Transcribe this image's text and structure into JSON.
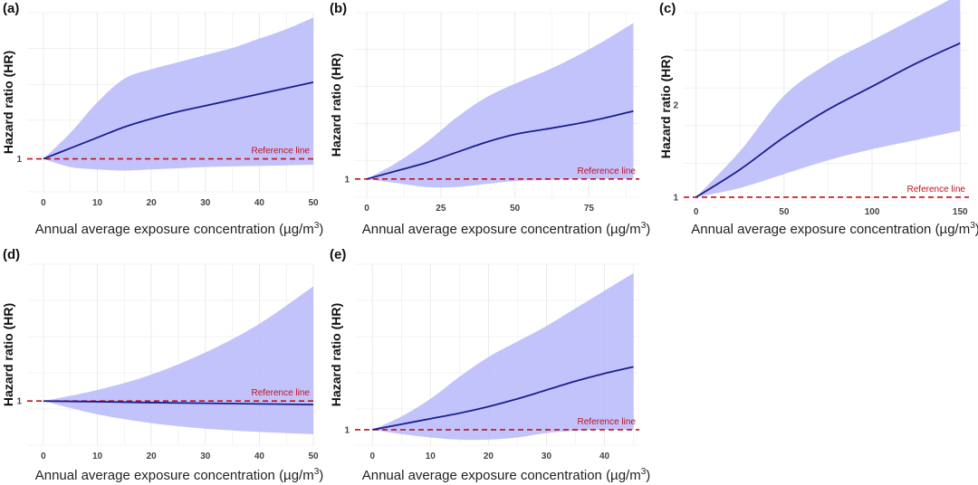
{
  "colors": {
    "band": "#b9b8fb",
    "line": "#1a1f8f",
    "reference": "#c0121e",
    "grid": "#e8e8e8"
  },
  "chart_data": [
    {
      "panel": "(a)",
      "type": "line",
      "ylabel": "Hazard ratio (HR)",
      "xlabel": "Annual average exposure concentration (µg/m³)",
      "xlim": [
        -3,
        50
      ],
      "ylim": [
        0.86,
        1.62
      ],
      "xticks": [
        0,
        10,
        20,
        30,
        40,
        50
      ],
      "yticks": [
        1
      ],
      "reference": {
        "y": 1,
        "label": "Reference line"
      },
      "series": [
        {
          "x": [
            0,
            5,
            10,
            15,
            20,
            25,
            30,
            35,
            40,
            45,
            50
          ],
          "y": [
            1.0,
            1.045,
            1.09,
            1.135,
            1.17,
            1.2,
            1.225,
            1.25,
            1.275,
            1.3,
            1.325
          ]
        },
        {
          "x": [
            0,
            5,
            10,
            15,
            20,
            25,
            30,
            35,
            40,
            45,
            50
          ],
          "y": [
            1.0,
            1.11,
            1.24,
            1.34,
            1.38,
            1.41,
            1.44,
            1.47,
            1.51,
            1.55,
            1.6
          ]
        },
        {
          "x": [
            0,
            5,
            10,
            15,
            20,
            25,
            30,
            35,
            40,
            45,
            50
          ],
          "y": [
            1.0,
            0.965,
            0.955,
            0.95,
            0.955,
            0.96,
            0.965,
            0.968,
            0.97,
            0.972,
            0.975
          ]
        }
      ]
    },
    {
      "panel": "(b)",
      "type": "line",
      "ylabel": "Hazard ratio (HR)",
      "xlabel": "Annual average exposure concentration (µg/m³)",
      "xlim": [
        -4,
        92
      ],
      "ylim": [
        0.91,
        1.82
      ],
      "xticks": [
        0,
        25,
        50,
        75
      ],
      "yticks": [
        1
      ],
      "reference": {
        "y": 1,
        "label": "Reference line"
      },
      "series": [
        {
          "x": [
            0,
            10,
            20,
            30,
            40,
            50,
            60,
            70,
            80,
            90
          ],
          "y": [
            1.0,
            1.04,
            1.08,
            1.13,
            1.18,
            1.22,
            1.245,
            1.27,
            1.3,
            1.335
          ]
        },
        {
          "x": [
            0,
            10,
            20,
            30,
            40,
            50,
            60,
            70,
            80,
            90
          ],
          "y": [
            1.0,
            1.08,
            1.18,
            1.3,
            1.4,
            1.47,
            1.53,
            1.6,
            1.68,
            1.77
          ]
        },
        {
          "x": [
            0,
            10,
            20,
            30,
            40,
            50,
            60,
            70,
            80,
            90
          ],
          "y": [
            1.0,
            0.98,
            0.96,
            0.96,
            0.975,
            0.99,
            0.995,
            0.998,
            1.0,
            1.0
          ]
        }
      ]
    },
    {
      "panel": "(c)",
      "type": "line",
      "ylabel": "Hazard ratio (HR)",
      "xlabel": "Annual average exposure concentration (µg/m³)",
      "xlim": [
        -7,
        155
      ],
      "ylim": [
        0.96,
        3.0
      ],
      "xticks": [
        0,
        50,
        100,
        150
      ],
      "yticks": [
        1,
        2
      ],
      "reference": {
        "y": 1,
        "label": "Reference line"
      },
      "series": [
        {
          "x": [
            0,
            25,
            50,
            75,
            100,
            125,
            150
          ],
          "y": [
            1.0,
            1.3,
            1.65,
            1.95,
            2.2,
            2.45,
            2.67
          ]
        },
        {
          "x": [
            0,
            25,
            50,
            75,
            100,
            125,
            150
          ],
          "y": [
            1.0,
            1.5,
            2.1,
            2.45,
            2.7,
            2.95,
            3.2
          ]
        },
        {
          "x": [
            0,
            25,
            50,
            75,
            100,
            125,
            150
          ],
          "y": [
            1.0,
            1.1,
            1.25,
            1.4,
            1.52,
            1.62,
            1.72
          ]
        }
      ]
    },
    {
      "panel": "(d)",
      "type": "line",
      "ylabel": "Hazard ratio (HR)",
      "xlabel": "Annual average exposure concentration (µg/m³)",
      "xlim": [
        -3,
        50
      ],
      "ylim": [
        0.8,
        1.62
      ],
      "xticks": [
        0,
        10,
        20,
        30,
        40,
        50
      ],
      "yticks": [
        1
      ],
      "reference": {
        "y": 1,
        "label": "Reference line"
      },
      "series": [
        {
          "x": [
            0,
            10,
            20,
            30,
            40,
            50
          ],
          "y": [
            1.0,
            0.997,
            0.993,
            0.99,
            0.987,
            0.984
          ]
        },
        {
          "x": [
            0,
            10,
            20,
            30,
            40,
            50
          ],
          "y": [
            1.0,
            1.05,
            1.12,
            1.22,
            1.35,
            1.52
          ]
        },
        {
          "x": [
            0,
            10,
            20,
            30,
            40,
            50
          ],
          "y": [
            1.0,
            0.94,
            0.9,
            0.875,
            0.86,
            0.85
          ]
        }
      ]
    },
    {
      "panel": "(e)",
      "type": "line",
      "ylabel": "Hazard ratio (HR)",
      "xlabel": "Annual average exposure concentration (µg/m³)",
      "xlim": [
        -3,
        46
      ],
      "ylim": [
        0.93,
        1.75
      ],
      "xticks": [
        0,
        10,
        20,
        30,
        40
      ],
      "yticks": [
        1
      ],
      "reference": {
        "y": 1,
        "label": "Reference line"
      },
      "series": [
        {
          "x": [
            0,
            5,
            10,
            15,
            20,
            25,
            30,
            35,
            40,
            45
          ],
          "y": [
            1.0,
            1.025,
            1.05,
            1.075,
            1.105,
            1.14,
            1.18,
            1.22,
            1.255,
            1.285
          ]
        },
        {
          "x": [
            0,
            5,
            10,
            15,
            20,
            25,
            30,
            35,
            40,
            45
          ],
          "y": [
            1.0,
            1.06,
            1.14,
            1.24,
            1.33,
            1.4,
            1.47,
            1.55,
            1.63,
            1.71
          ]
        },
        {
          "x": [
            0,
            5,
            10,
            15,
            20,
            25,
            30,
            35,
            40,
            45
          ],
          "y": [
            1.0,
            0.98,
            0.965,
            0.955,
            0.955,
            0.965,
            0.985,
            0.995,
            1.0,
            1.0
          ]
        }
      ]
    }
  ]
}
